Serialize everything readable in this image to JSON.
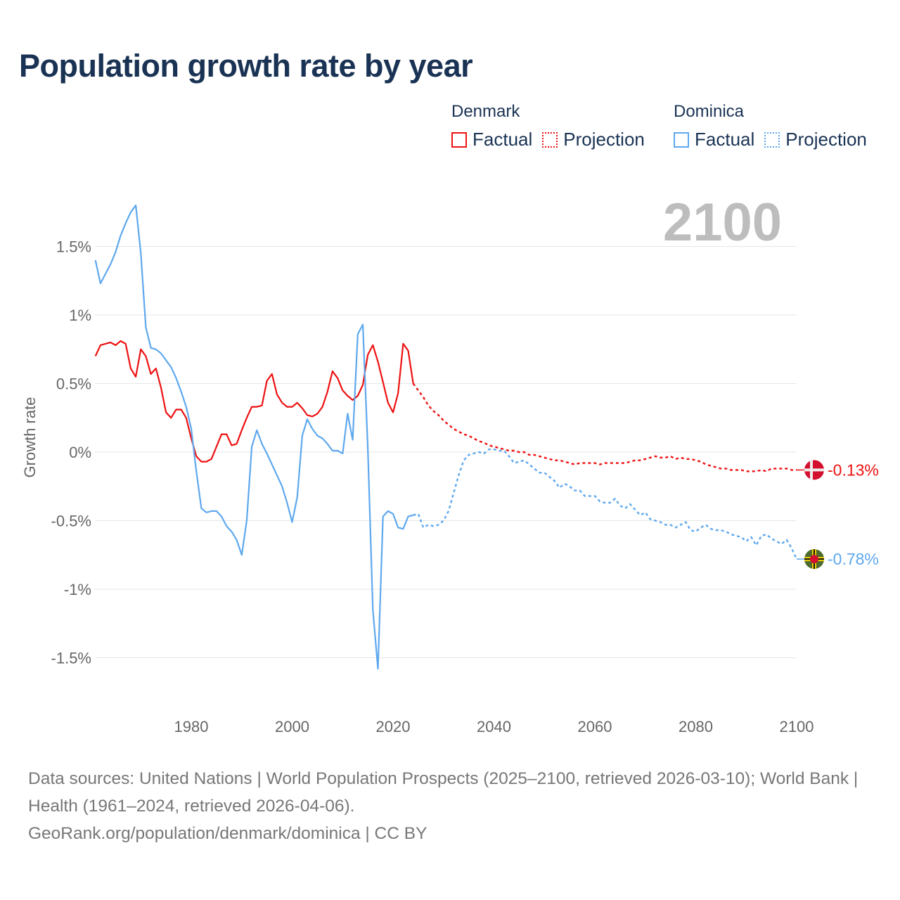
{
  "title": "Population growth rate by year",
  "legend": [
    {
      "country": "Denmark",
      "factual": "Factual",
      "projection": "Projection",
      "color": "#ee1111"
    },
    {
      "country": "Dominica",
      "factual": "Factual",
      "projection": "Projection",
      "color": "#5ea8ee"
    }
  ],
  "footer": {
    "sources": "Data sources: United Nations | World Population Prospects (2025–2100, retrieved 2026-03-10); World Bank | Health (1961–2024, retrieved 2026-04-06).",
    "link": "GeoRank.org/population/denmark/dominica | CC BY"
  },
  "chart_data": {
    "type": "line",
    "title": "Population growth rate by year",
    "current_year_label": "2100",
    "ylabel": "Growth rate",
    "xlabel": "",
    "xlim": [
      1961,
      2100
    ],
    "ylim": [
      -1.75,
      1.85
    ],
    "x_ticks": [
      1980,
      2000,
      2020,
      2040,
      2060,
      2080,
      2100
    ],
    "x_tick_labels": [
      "1980",
      "2000",
      "2020",
      "2040",
      "2060",
      "2080",
      "2100"
    ],
    "y_ticks": [
      1.5,
      1,
      0.5,
      0,
      -0.5,
      -1,
      -1.5
    ],
    "y_tick_labels": [
      "1.5%",
      "1%",
      "0.5%",
      "0%",
      "-0.5%",
      "-1%",
      "-1.5%"
    ],
    "grid": true,
    "legend_position": "top-right",
    "factual_years": [
      1961,
      2024
    ],
    "projection_years": [
      2024,
      2100
    ],
    "series": [
      {
        "name": "Denmark",
        "color": "#ee1111",
        "end_label": "-0.13%",
        "start_year": 1961,
        "values": [
          0.7,
          0.78,
          0.79,
          0.8,
          0.78,
          0.81,
          0.79,
          0.61,
          0.55,
          0.75,
          0.7,
          0.57,
          0.61,
          0.47,
          0.29,
          0.25,
          0.31,
          0.31,
          0.25,
          0.1,
          -0.03,
          -0.07,
          -0.07,
          -0.05,
          0.04,
          0.13,
          0.13,
          0.05,
          0.06,
          0.16,
          0.25,
          0.33,
          0.33,
          0.34,
          0.52,
          0.57,
          0.42,
          0.36,
          0.33,
          0.33,
          0.36,
          0.32,
          0.27,
          0.26,
          0.28,
          0.33,
          0.44,
          0.59,
          0.54,
          0.45,
          0.41,
          0.38,
          0.41,
          0.49,
          0.71,
          0.78,
          0.66,
          0.51,
          0.36,
          0.29,
          0.43,
          0.79,
          0.74,
          0.5,
          0.45,
          0.4,
          0.34,
          0.3,
          0.27,
          0.23,
          0.2,
          0.17,
          0.15,
          0.13,
          0.12,
          0.1,
          0.08,
          0.07,
          0.05,
          0.04,
          0.03,
          0.02,
          0.01,
          0.01,
          0.0,
          0.0,
          -0.02,
          -0.02,
          -0.03,
          -0.04,
          -0.05,
          -0.06,
          -0.06,
          -0.07,
          -0.08,
          -0.09,
          -0.08,
          -0.08,
          -0.08,
          -0.08,
          -0.09,
          -0.08,
          -0.08,
          -0.08,
          -0.08,
          -0.08,
          -0.07,
          -0.06,
          -0.06,
          -0.05,
          -0.04,
          -0.03,
          -0.04,
          -0.04,
          -0.03,
          -0.05,
          -0.04,
          -0.05,
          -0.05,
          -0.06,
          -0.07,
          -0.09,
          -0.1,
          -0.11,
          -0.12,
          -0.12,
          -0.13,
          -0.13,
          -0.13,
          -0.14,
          -0.14,
          -0.14,
          -0.13,
          -0.14,
          -0.12,
          -0.12,
          -0.12,
          -0.12,
          -0.13,
          -0.13
        ]
      },
      {
        "name": "Dominica",
        "color": "#5ea8ee",
        "end_label": "-0.78%",
        "start_year": 1961,
        "values": [
          1.4,
          1.23,
          1.3,
          1.37,
          1.46,
          1.58,
          1.67,
          1.75,
          1.8,
          1.45,
          0.91,
          0.76,
          0.75,
          0.72,
          0.67,
          0.62,
          0.54,
          0.44,
          0.33,
          0.17,
          -0.14,
          -0.41,
          -0.44,
          -0.43,
          -0.43,
          -0.47,
          -0.54,
          -0.58,
          -0.64,
          -0.75,
          -0.5,
          0.04,
          0.16,
          0.06,
          -0.01,
          -0.09,
          -0.17,
          -0.25,
          -0.37,
          -0.51,
          -0.33,
          0.12,
          0.24,
          0.17,
          0.12,
          0.1,
          0.06,
          0.01,
          0.01,
          -0.01,
          0.28,
          0.09,
          0.86,
          0.93,
          0.03,
          -1.15,
          -1.58,
          -0.47,
          -0.43,
          -0.45,
          -0.55,
          -0.56,
          -0.47,
          -0.46,
          -0.45,
          -0.55,
          -0.53,
          -0.54,
          -0.53,
          -0.5,
          -0.43,
          -0.3,
          -0.17,
          -0.06,
          -0.02,
          -0.01,
          0.0,
          -0.01,
          0.02,
          0.02,
          0.01,
          0.01,
          -0.03,
          -0.08,
          -0.07,
          -0.06,
          -0.09,
          -0.12,
          -0.15,
          -0.15,
          -0.18,
          -0.21,
          -0.26,
          -0.23,
          -0.25,
          -0.28,
          -0.28,
          -0.32,
          -0.32,
          -0.32,
          -0.36,
          -0.37,
          -0.37,
          -0.34,
          -0.39,
          -0.41,
          -0.38,
          -0.42,
          -0.46,
          -0.44,
          -0.49,
          -0.5,
          -0.51,
          -0.53,
          -0.53,
          -0.55,
          -0.53,
          -0.51,
          -0.57,
          -0.58,
          -0.55,
          -0.53,
          -0.56,
          -0.57,
          -0.57,
          -0.58,
          -0.6,
          -0.61,
          -0.62,
          -0.65,
          -0.62,
          -0.68,
          -0.61,
          -0.6,
          -0.63,
          -0.65,
          -0.67,
          -0.64,
          -0.7,
          -0.78
        ]
      }
    ]
  }
}
